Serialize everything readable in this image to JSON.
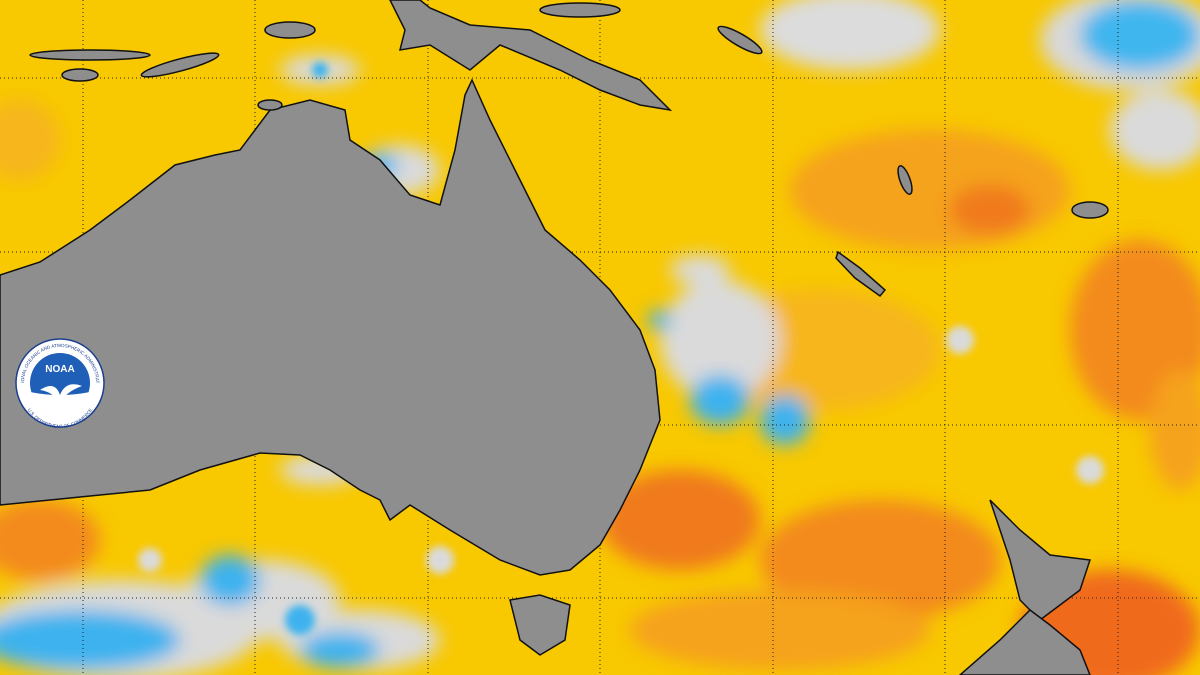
{
  "logo": {
    "text": "NOAA",
    "top_text": "NATIONAL OCEANIC AND ATMOSPHERIC ADMINISTRATION",
    "bottom_text": "U.S. DEPARTMENT OF COMMERCE"
  }
}
